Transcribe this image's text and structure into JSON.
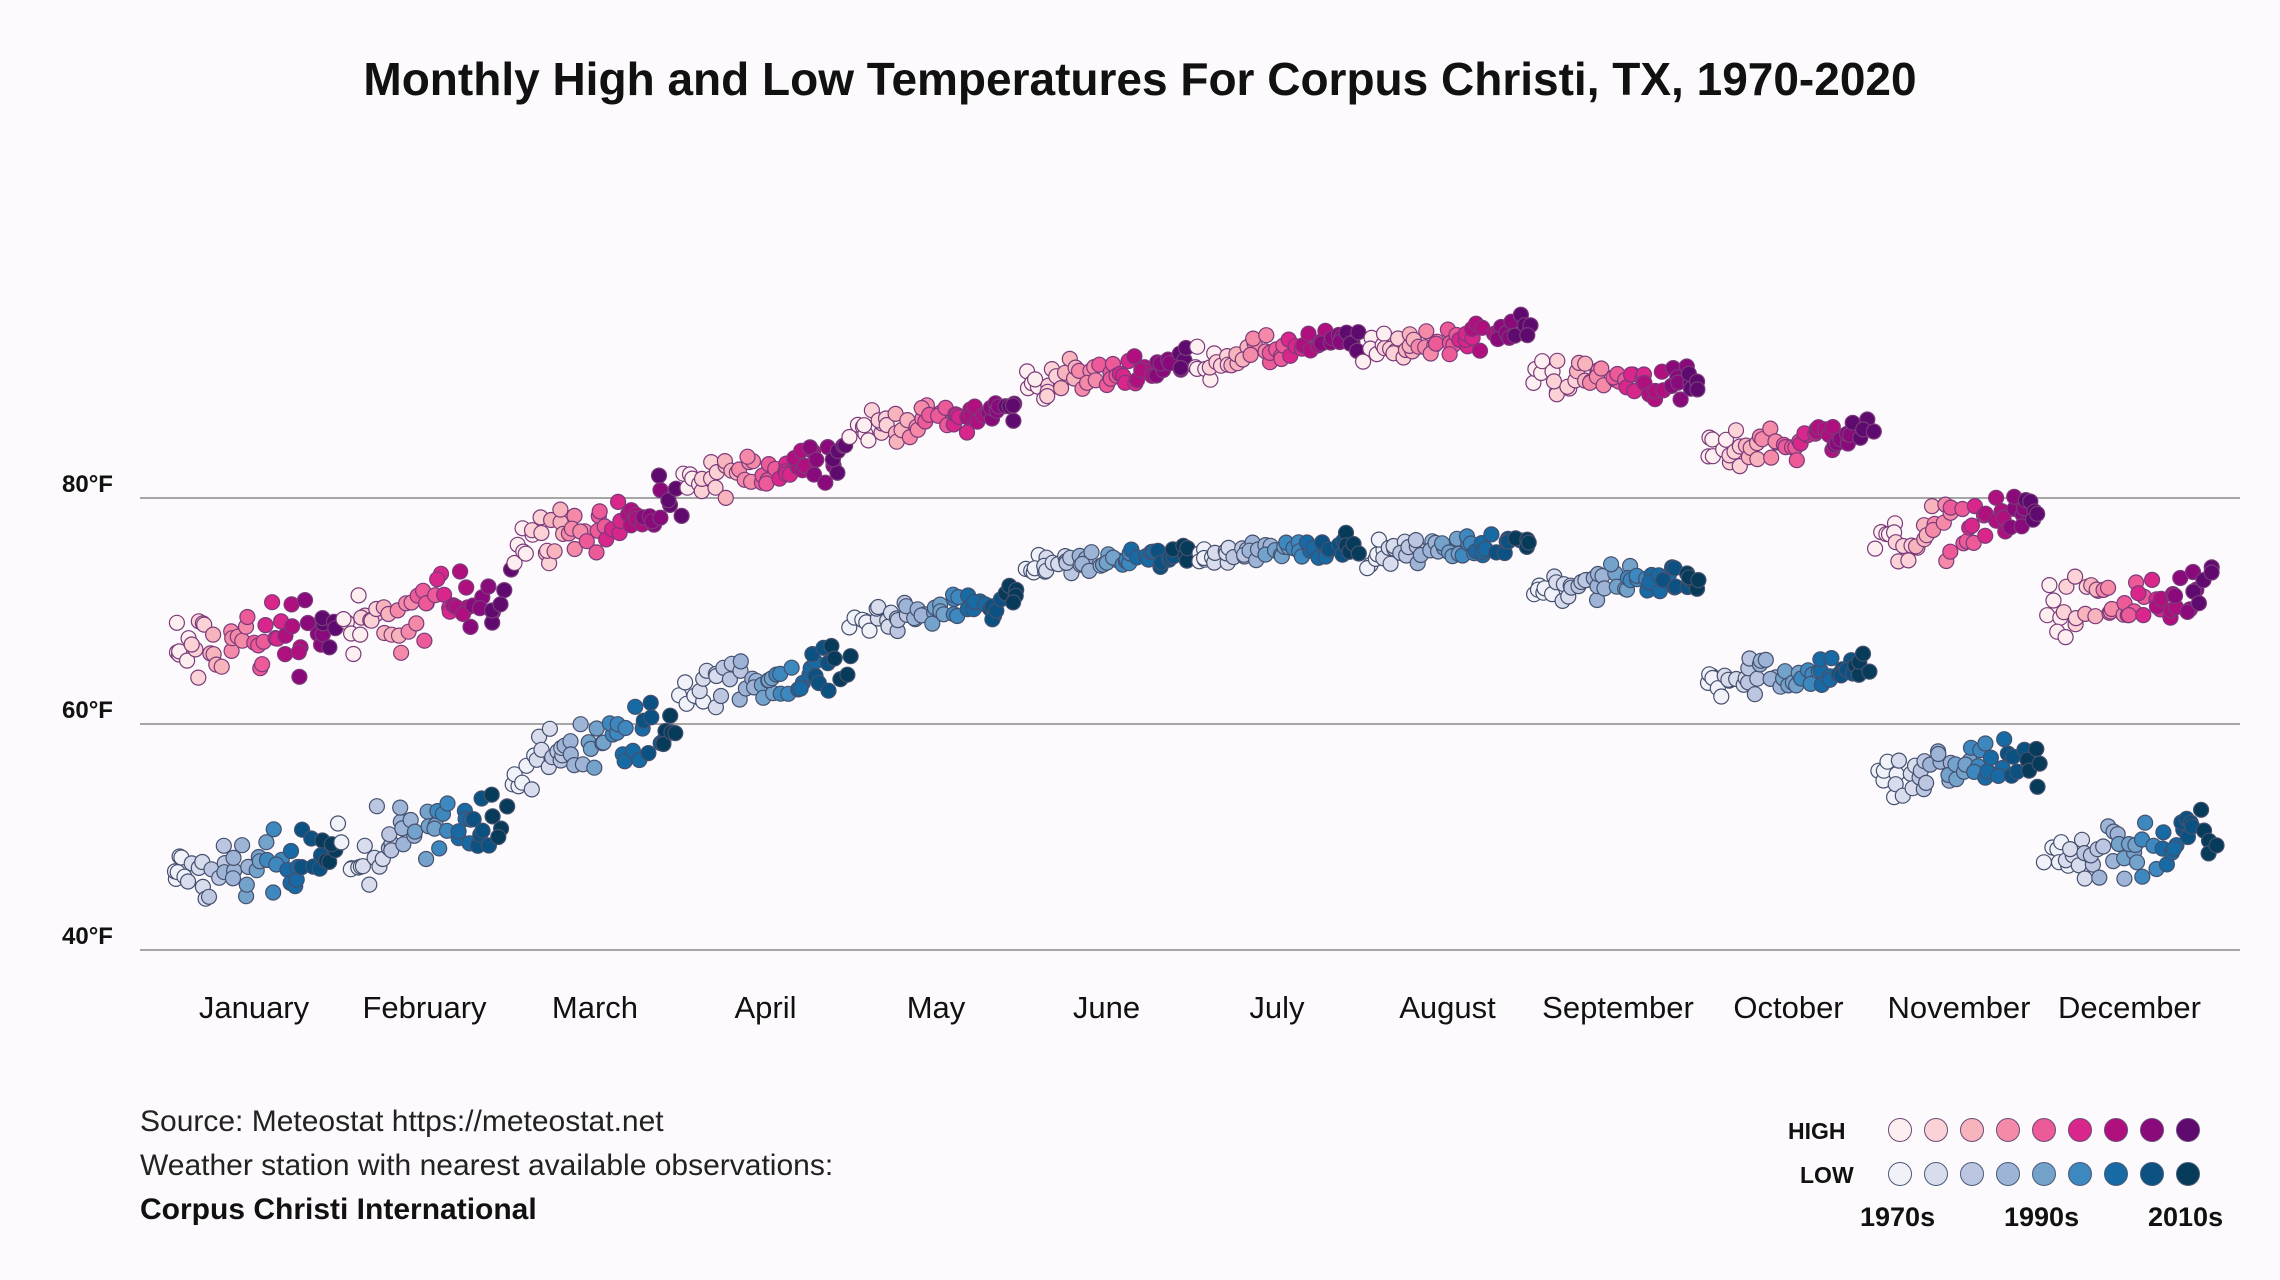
{
  "title": "Monthly High and Low Temperatures For Corpus Christi, TX, 1970-2020",
  "source": {
    "line1": "Source: Meteostat https://meteostat.net",
    "line2": "Weather station with nearest available observations:",
    "station": "Corpus Christi International"
  },
  "legend": {
    "high_label": "HIGH",
    "low_label": "LOW",
    "decades": [
      "1970s",
      "1990s",
      "2010s"
    ],
    "high_colors": [
      "#fdeef0",
      "#fbd3d6",
      "#f8b4bc",
      "#f48aa8",
      "#ec5a98",
      "#d8268a",
      "#b0107e",
      "#8a0a7c",
      "#5e0a6e"
    ],
    "low_colors": [
      "#f1f2f9",
      "#d8dcec",
      "#bcc6e0",
      "#9db4d6",
      "#73a2cb",
      "#3d88be",
      "#176aa4",
      "#0b5283",
      "#073b5a"
    ]
  },
  "chart_data": {
    "type": "scatter",
    "title": "Monthly High and Low Temperatures For Corpus Christi, TX, 1970-2020",
    "xlabel": "",
    "ylabel": "",
    "ylim": [
      38,
      100
    ],
    "y_ticks": [
      {
        "value": 40,
        "label": "40°F"
      },
      {
        "value": 60,
        "label": "60°F"
      },
      {
        "value": 80,
        "label": "80°F"
      }
    ],
    "categories": [
      "January",
      "February",
      "March",
      "April",
      "May",
      "June",
      "July",
      "August",
      "September",
      "October",
      "November",
      "December"
    ],
    "years": [
      1970,
      2020
    ],
    "series": [
      {
        "name": "High",
        "description": "Mean monthly high temperature (°F) per year, 1970-2020; colored by decade",
        "monthly_start": [
          66,
          68,
          76,
          81,
          86,
          90,
          92,
          93,
          91,
          84,
          76,
          70
        ],
        "monthly_end": [
          69,
          72,
          79,
          84,
          88,
          92,
          94,
          95,
          90,
          86,
          79,
          71
        ],
        "spread": [
          5.5,
          4.5,
          3.5,
          2.5,
          2.0,
          2.0,
          2.0,
          2.0,
          2.5,
          2.5,
          3.5,
          4.0
        ]
      },
      {
        "name": "Low",
        "description": "Mean monthly low temperature (°F) per year, 1970-2020; colored by decade",
        "monthly_start": [
          46,
          48,
          56,
          63,
          69,
          74,
          75,
          75,
          72,
          64,
          55,
          48
        ],
        "monthly_end": [
          48,
          52,
          60,
          65,
          71,
          75,
          76,
          76,
          73,
          65,
          57,
          50
        ],
        "spread": [
          4.5,
          4.5,
          4.0,
          3.0,
          2.0,
          1.5,
          1.5,
          1.5,
          2.0,
          2.5,
          3.5,
          4.5
        ]
      }
    ]
  }
}
